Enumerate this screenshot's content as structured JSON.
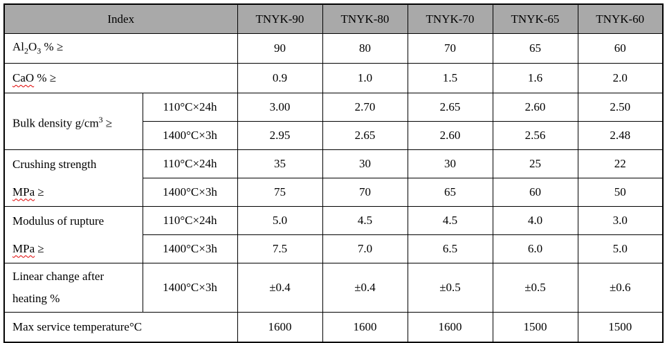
{
  "colors": {
    "header_bg": "#A9A9A9",
    "border": "#000000",
    "text": "#000000",
    "spellcheck_underline": "#E00000"
  },
  "table": {
    "header": {
      "index_label": "Index",
      "product_columns": [
        "TNYK-90",
        "TNYK-80",
        "TNYK-70",
        "TNYK-65",
        "TNYK-60"
      ]
    },
    "rows": [
      {
        "kind": "simple",
        "label_lines": [
          [
            {
              "text": "Al"
            },
            {
              "text": "2",
              "sub": true
            },
            {
              "text": "O"
            },
            {
              "text": "3",
              "sub": true
            },
            {
              "text": " % ≥"
            }
          ]
        ],
        "values": [
          "90",
          "80",
          "70",
          "65",
          "60"
        ]
      },
      {
        "kind": "simple",
        "label_lines": [
          [
            {
              "text": "CaO",
              "misspelled": true
            },
            {
              "text": " % ≥"
            }
          ]
        ],
        "values": [
          "0.9",
          "1.0",
          "1.5",
          "1.6",
          "2.0"
        ]
      },
      {
        "kind": "group",
        "label_lines": [
          [
            {
              "text": "Bulk density g/cm"
            },
            {
              "text": "3",
              "sup": true
            },
            {
              "text": " ≥"
            }
          ]
        ],
        "subrows": [
          {
            "condition": "110°C×24h",
            "values": [
              "3.00",
              "2.70",
              "2.65",
              "2.60",
              "2.50"
            ]
          },
          {
            "condition": "1400°C×3h",
            "values": [
              "2.95",
              "2.65",
              "2.60",
              "2.56",
              "2.48"
            ]
          }
        ]
      },
      {
        "kind": "group",
        "label_lines": [
          [
            {
              "text": "Crushing strength"
            }
          ],
          [
            {
              "text": "MPa",
              "misspelled": true
            },
            {
              "text": " ≥"
            }
          ]
        ],
        "subrows": [
          {
            "condition": "110°C×24h",
            "values": [
              "35",
              "30",
              "30",
              "25",
              "22"
            ]
          },
          {
            "condition": "1400°C×3h",
            "values": [
              "75",
              "70",
              "65",
              "60",
              "50"
            ]
          }
        ]
      },
      {
        "kind": "group",
        "label_lines": [
          [
            {
              "text": "Modulus of rupture"
            }
          ],
          [
            {
              "text": "MPa",
              "misspelled": true
            },
            {
              "text": " ≥"
            }
          ]
        ],
        "subrows": [
          {
            "condition": "110°C×24h",
            "values": [
              "5.0",
              "4.5",
              "4.5",
              "4.0",
              "3.0"
            ]
          },
          {
            "condition": "1400°C×3h",
            "values": [
              "7.5",
              "7.0",
              "6.5",
              "6.0",
              "5.0"
            ]
          }
        ]
      },
      {
        "kind": "condition_single",
        "label_lines": [
          [
            {
              "text": "Linear change after"
            }
          ],
          [
            {
              "text": "heating %"
            }
          ]
        ],
        "condition": "1400°C×3h",
        "values": [
          "±0.4",
          "±0.4",
          "±0.5",
          "±0.5",
          "±0.6"
        ]
      },
      {
        "kind": "simple",
        "label_lines": [
          [
            {
              "text": "Max service temperature°C"
            }
          ]
        ],
        "values": [
          "1600",
          "1600",
          "1600",
          "1500",
          "1500"
        ]
      }
    ]
  }
}
